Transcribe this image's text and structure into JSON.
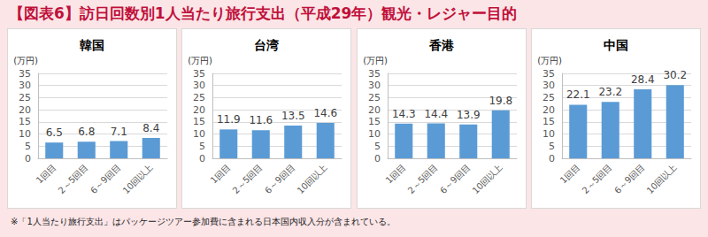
{
  "title": "【図表6】訪日回数別1人当たり旅行支出（平成29年）観光・レジャー目的",
  "note": "※「1人当たり旅行支出」はパッケージツアー参加費に含まれる日本国内収入分が含まれている。",
  "chart_data": [
    {
      "type": "bar",
      "title": "韓国",
      "y_label": "(万円)",
      "categories": [
        "1回目",
        "2～5回目",
        "6～9回目",
        "10回以上"
      ],
      "values": [
        6.5,
        6.8,
        7.1,
        8.4
      ],
      "color": "#5b9bd5",
      "ylim": [
        0,
        35
      ],
      "yticks": [
        0,
        5,
        10,
        15,
        20,
        25,
        30,
        35
      ],
      "grid": true,
      "data_labels": true
    },
    {
      "type": "bar",
      "title": "台湾",
      "y_label": "(万円)",
      "categories": [
        "1回目",
        "2～5回目",
        "6～9回目",
        "10回以上"
      ],
      "values": [
        11.9,
        11.6,
        13.5,
        14.6
      ],
      "color": "#5b9bd5",
      "ylim": [
        0,
        35
      ],
      "yticks": [
        0,
        5,
        10,
        15,
        20,
        25,
        30,
        35
      ],
      "grid": true,
      "data_labels": true
    },
    {
      "type": "bar",
      "title": "香港",
      "y_label": "(万円)",
      "categories": [
        "1回目",
        "2～5回目",
        "6～9回目",
        "10回以上"
      ],
      "values": [
        14.3,
        14.4,
        13.9,
        19.8
      ],
      "color": "#5b9bd5",
      "ylim": [
        0,
        35
      ],
      "yticks": [
        0,
        5,
        10,
        15,
        20,
        25,
        30,
        35
      ],
      "grid": true,
      "data_labels": true
    },
    {
      "type": "bar",
      "title": "中国",
      "y_label": "(万円)",
      "categories": [
        "1回目",
        "2～5回目",
        "6～9回目",
        "10回以上"
      ],
      "values": [
        22.1,
        23.2,
        28.4,
        30.2
      ],
      "color": "#5b9bd5",
      "ylim": [
        0,
        35
      ],
      "yticks": [
        0,
        5,
        10,
        15,
        20,
        25,
        30,
        35
      ],
      "grid": true,
      "data_labels": true
    }
  ]
}
